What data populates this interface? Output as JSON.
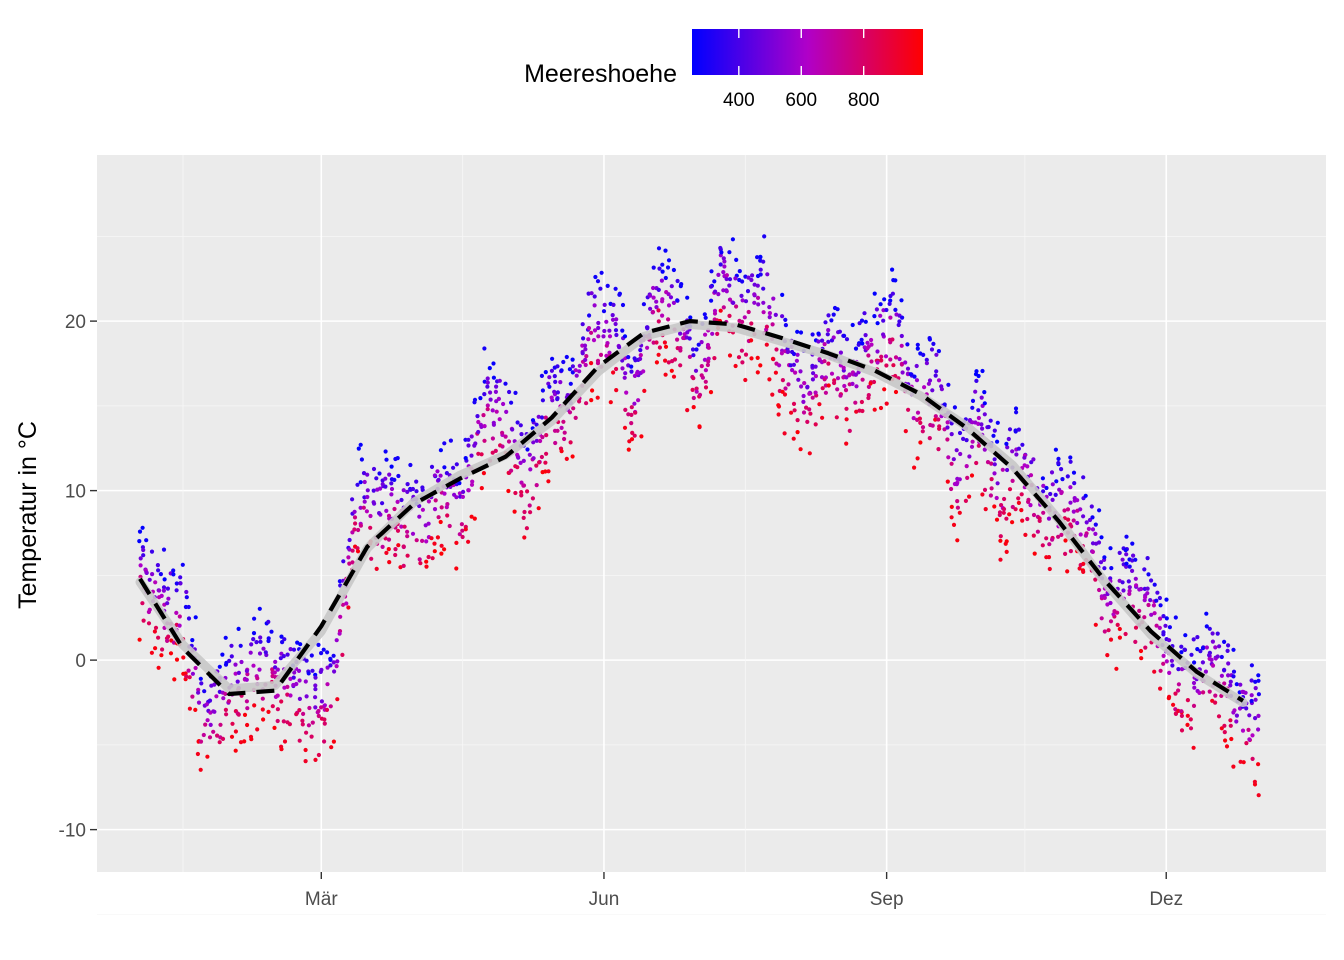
{
  "chart_data": {
    "type": "scatter",
    "title": "",
    "xlabel": "",
    "ylabel": "Temperatur in °C",
    "x_unit": "day of year",
    "xlim": [
      -13,
      387
    ],
    "ylim": [
      -12.5,
      29.8
    ],
    "x_ticks": [
      {
        "value": 60,
        "label": "Mär"
      },
      {
        "value": 152,
        "label": "Jun"
      },
      {
        "value": 244,
        "label": "Sep"
      },
      {
        "value": 335,
        "label": "Dez"
      }
    ],
    "x_minor_ticks": [
      15,
      106,
      198,
      289
    ],
    "y_ticks": [
      -10,
      0,
      10,
      20
    ],
    "grid": true,
    "background": "#ebebeb",
    "legend": {
      "title": "Meereshoehe",
      "position": "top",
      "breaks": [
        400,
        600,
        800
      ],
      "range": [
        250,
        990
      ],
      "color_low": "#0000ff",
      "color_high": "#ff0000"
    },
    "smooth_line": {
      "style": "dashed",
      "color": "#000000",
      "x": [
        1,
        15,
        30,
        45,
        60,
        75,
        90,
        105,
        120,
        135,
        150,
        165,
        180,
        195,
        210,
        225,
        240,
        255,
        270,
        285,
        300,
        315,
        330,
        345,
        360
      ],
      "y": [
        4.8,
        0.7,
        -2.0,
        -1.8,
        2.0,
        6.7,
        9.2,
        10.7,
        12.0,
        14.3,
        17.3,
        19.3,
        20.0,
        19.8,
        19.0,
        18.1,
        17.1,
        15.7,
        13.7,
        11.3,
        8.2,
        4.7,
        1.7,
        -0.7,
        -2.4
      ]
    },
    "smooth_band": {
      "color": "#c8c8c8",
      "x": [
        1,
        15,
        30,
        45,
        60,
        75,
        90,
        105,
        120,
        135,
        150,
        165,
        180,
        195,
        210,
        225,
        240,
        255,
        270,
        285,
        300,
        315,
        330,
        345,
        360
      ],
      "y": [
        4.6,
        0.9,
        -1.7,
        -1.5,
        1.7,
        6.6,
        9.3,
        10.9,
        12.1,
        14.1,
        17.0,
        19.1,
        19.8,
        19.6,
        18.8,
        18.0,
        17.0,
        15.6,
        13.8,
        11.5,
        8.3,
        4.6,
        1.5,
        -0.8,
        -2.5
      ]
    },
    "series": [
      {
        "elevation": 280,
        "temp_offset": 2.0
      },
      {
        "elevation": 390,
        "temp_offset": 1.2
      },
      {
        "elevation": 480,
        "temp_offset": 0.6
      },
      {
        "elevation": 560,
        "temp_offset": 0.0
      },
      {
        "elevation": 640,
        "temp_offset": -0.6
      },
      {
        "elevation": 730,
        "temp_offset": -1.4
      },
      {
        "elevation": 820,
        "temp_offset": -2.3
      },
      {
        "elevation": 950,
        "temp_offset": -3.4
      }
    ],
    "anomaly": {
      "x": [
        1,
        8,
        15,
        22,
        29,
        36,
        43,
        50,
        57,
        64,
        71,
        78,
        85,
        92,
        99,
        106,
        113,
        120,
        127,
        134,
        141,
        148,
        155,
        162,
        169,
        176,
        183,
        190,
        197,
        204,
        211,
        218,
        225,
        232,
        239,
        246,
        253,
        260,
        267,
        274,
        281,
        288,
        295,
        302,
        309,
        316,
        323,
        330,
        337,
        344,
        351,
        358,
        365
      ],
      "y": [
        0.5,
        1.0,
        2.5,
        -3.0,
        0.5,
        1.5,
        2.0,
        -0.5,
        -4.0,
        -4.0,
        4.0,
        2.0,
        1.0,
        -1.5,
        0.5,
        -1.5,
        4.0,
        2.5,
        -2.0,
        1.0,
        0.0,
        3.0,
        1.5,
        -3.0,
        2.5,
        0.5,
        -3.0,
        3.0,
        1.0,
        2.5,
        -1.0,
        -2.5,
        0.5,
        -1.0,
        1.5,
        3.5,
        -0.5,
        1.5,
        -3.0,
        1.5,
        -1.5,
        1.5,
        0.0,
        2.0,
        2.5,
        -1.0,
        1.5,
        2.0,
        -1.0,
        -0.5,
        1.5,
        -0.5,
        -1.0
      ]
    }
  }
}
